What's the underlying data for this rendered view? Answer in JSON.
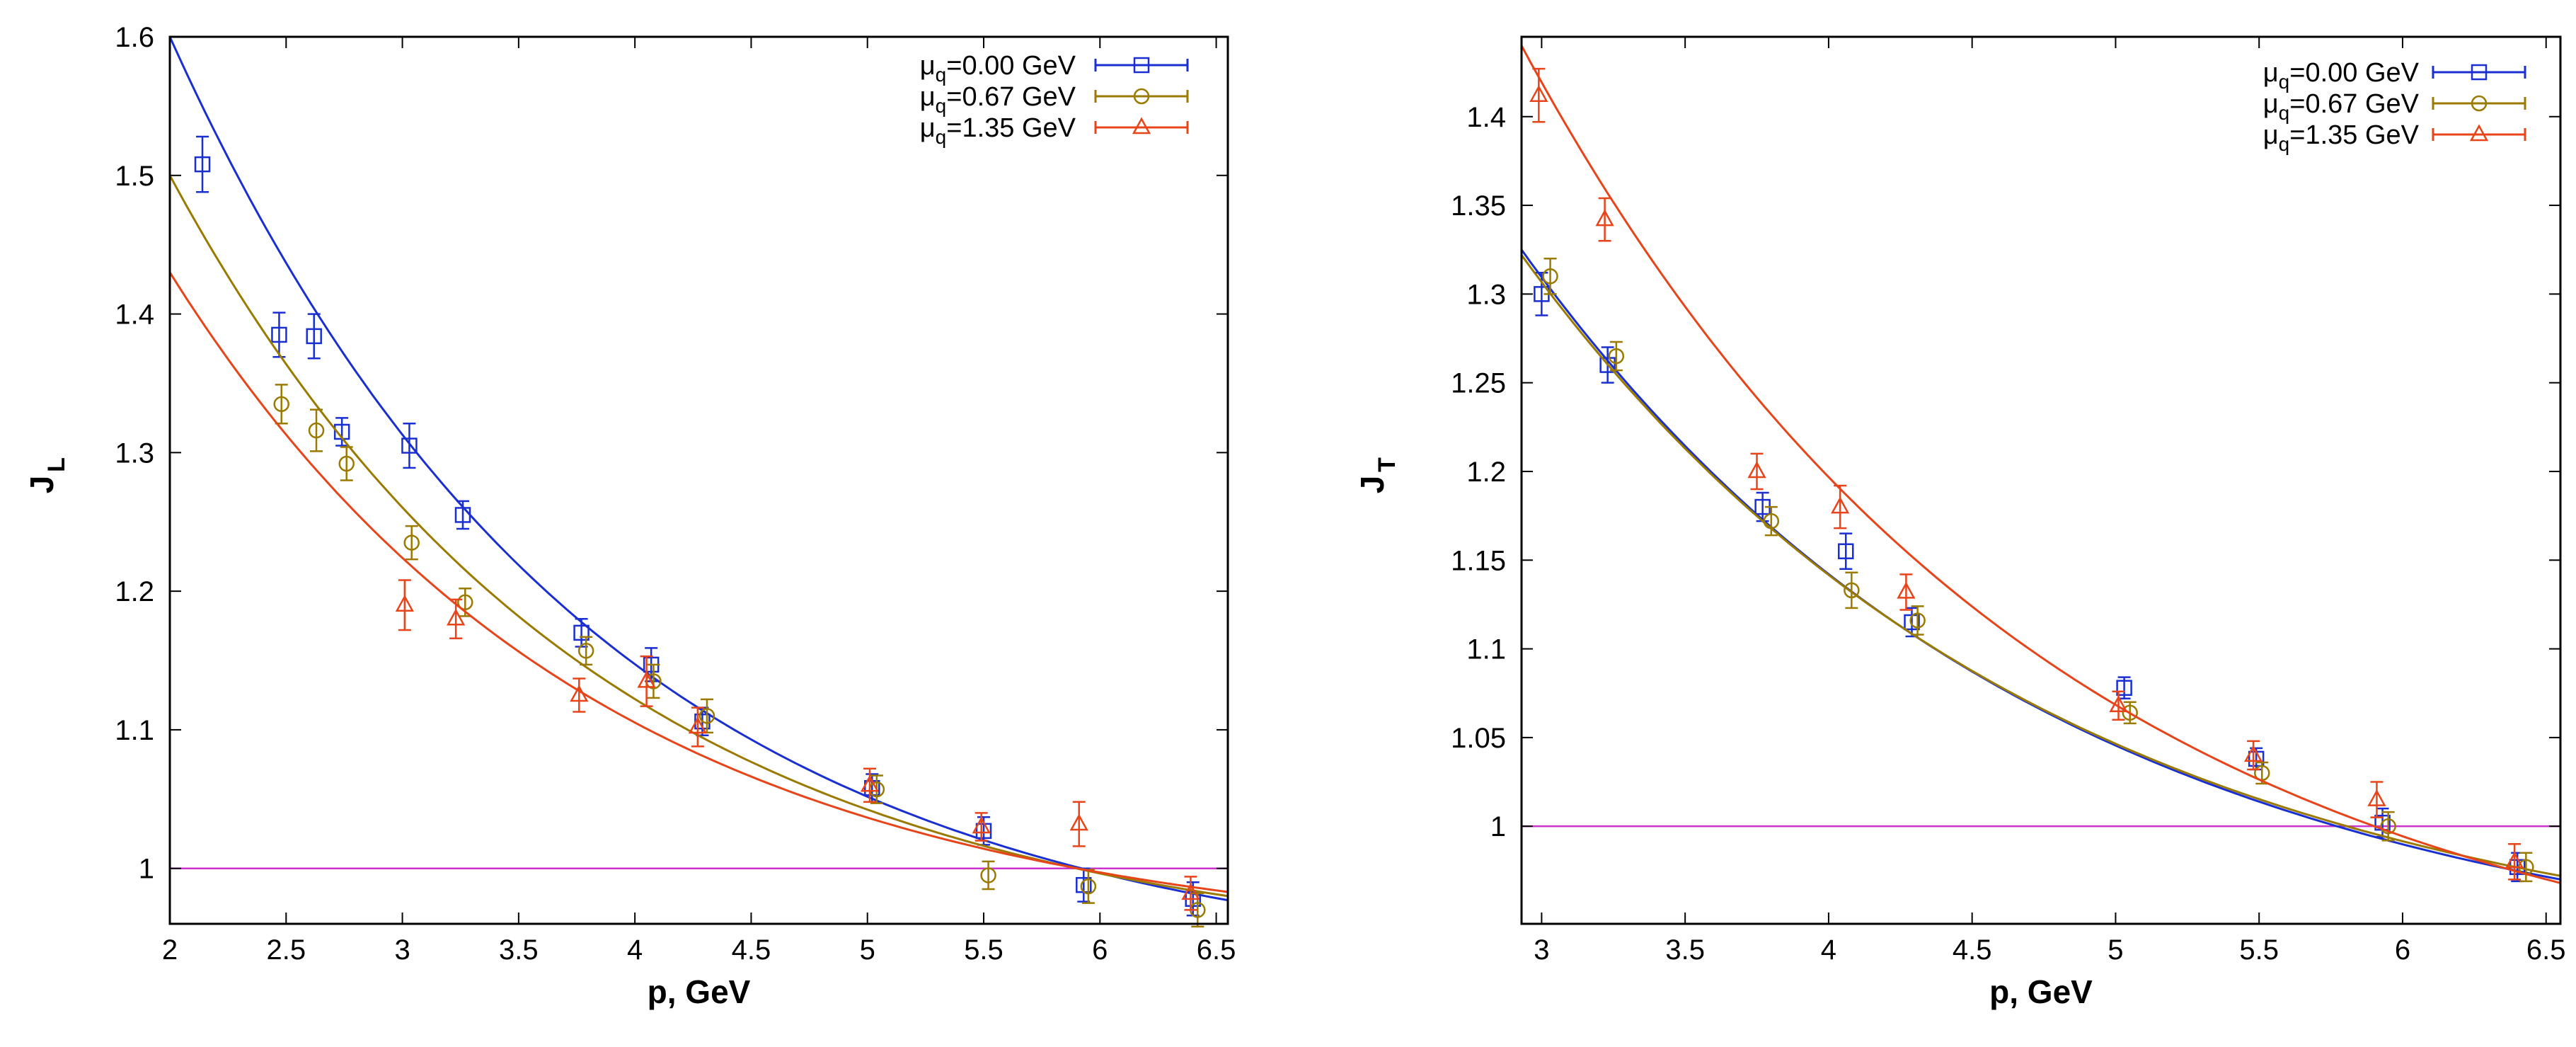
{
  "colors": {
    "s0": "#1a2fd1",
    "s1": "#9a7a00",
    "s2": "#e8441a",
    "ref": "#cc33cc"
  },
  "chart_data": [
    {
      "type": "scatter",
      "xlabel": "p, GeV",
      "ylabel_main": "J",
      "ylabel_sub": "L",
      "xlim": [
        2,
        6.55
      ],
      "ylim": [
        0.96,
        1.6
      ],
      "xticks": [
        2,
        2.5,
        3,
        3.5,
        4,
        4.5,
        5,
        5.5,
        6,
        6.5
      ],
      "xtick_labels": [
        "2",
        "2.5",
        "3",
        "3.5",
        "4",
        "4.5",
        "5",
        "5.5",
        "6",
        "6.5"
      ],
      "yticks": [
        1,
        1.1,
        1.2,
        1.3,
        1.4,
        1.5,
        1.6
      ],
      "ytick_labels": [
        "1",
        "1.1",
        "1.2",
        "1.3",
        "1.4",
        "1.5",
        "1.6"
      ],
      "reference_line": 1,
      "legend_position": "top-right",
      "series": [
        {
          "name": "μq=0.00 GeV",
          "legend_main": "μ",
          "legend_sub": "q",
          "legend_rest": "=0.00 GeV",
          "marker": "square",
          "color_key": "s0",
          "points": [
            [
              2.14,
              1.508,
              0.02
            ],
            [
              2.47,
              1.385,
              0.016
            ],
            [
              2.62,
              1.384,
              0.016
            ],
            [
              2.74,
              1.315,
              0.01
            ],
            [
              3.03,
              1.305,
              0.016
            ],
            [
              3.26,
              1.255,
              0.01
            ],
            [
              3.77,
              1.17,
              0.01
            ],
            [
              4.07,
              1.147,
              0.012
            ],
            [
              4.29,
              1.106,
              0.01
            ],
            [
              5.02,
              1.058,
              0.01
            ],
            [
              5.5,
              1.027,
              0.01
            ],
            [
              5.93,
              0.988,
              0.012
            ],
            [
              6.4,
              0.978,
              0.012
            ]
          ],
          "fit": [
            2.0,
            1.6,
            6.55,
            0.977
          ]
        },
        {
          "name": "μq=0.67 GeV",
          "legend_main": "μ",
          "legend_sub": "q",
          "legend_rest": "=0.67 GeV",
          "marker": "circle",
          "color_key": "s1",
          "points": [
            [
              2.48,
              1.335,
              0.014
            ],
            [
              2.63,
              1.316,
              0.015
            ],
            [
              2.76,
              1.292,
              0.012
            ],
            [
              3.04,
              1.235,
              0.012
            ],
            [
              3.27,
              1.192,
              0.01
            ],
            [
              3.79,
              1.157,
              0.01
            ],
            [
              4.08,
              1.135,
              0.012
            ],
            [
              4.31,
              1.11,
              0.012
            ],
            [
              5.04,
              1.057,
              0.01
            ],
            [
              5.52,
              0.995,
              0.01
            ],
            [
              5.95,
              0.987,
              0.012
            ],
            [
              6.42,
              0.97,
              0.012
            ]
          ],
          "fit": [
            2.0,
            1.5,
            6.55,
            0.98
          ]
        },
        {
          "name": "μq=1.35 GeV",
          "legend_main": "μ",
          "legend_sub": "q",
          "legend_rest": "=1.35 GeV",
          "marker": "triangle",
          "color_key": "s2",
          "points": [
            [
              3.01,
              1.19,
              0.018
            ],
            [
              3.23,
              1.18,
              0.014
            ],
            [
              3.76,
              1.125,
              0.012
            ],
            [
              4.05,
              1.135,
              0.018
            ],
            [
              4.27,
              1.102,
              0.014
            ],
            [
              5.01,
              1.06,
              0.012
            ],
            [
              5.49,
              1.03,
              0.01
            ],
            [
              5.91,
              1.032,
              0.016
            ],
            [
              6.39,
              0.982,
              0.012
            ]
          ],
          "fit": [
            2.0,
            1.43,
            6.55,
            0.983
          ]
        }
      ]
    },
    {
      "type": "scatter",
      "xlabel": "p, GeV",
      "ylabel_main": "J",
      "ylabel_sub": "T",
      "xlim": [
        2.93,
        6.55
      ],
      "ylim": [
        0.945,
        1.445
      ],
      "xticks": [
        3,
        3.5,
        4,
        4.5,
        5,
        5.5,
        6,
        6.5
      ],
      "xtick_labels": [
        "3",
        "3.5",
        "4",
        "4.5",
        "5",
        "5.5",
        "6",
        "6.5"
      ],
      "yticks": [
        1,
        1.05,
        1.1,
        1.15,
        1.2,
        1.25,
        1.3,
        1.35,
        1.4
      ],
      "ytick_labels": [
        "1",
        "1.05",
        "1.1",
        "1.15",
        "1.2",
        "1.25",
        "1.3",
        "1.35",
        "1.4"
      ],
      "reference_line": 1,
      "legend_position": "top-right",
      "series": [
        {
          "name": "μq=0.00 GeV",
          "legend_main": "μ",
          "legend_sub": "q",
          "legend_rest": "=0.00 GeV",
          "marker": "square",
          "color_key": "s0",
          "points": [
            [
              3.0,
              1.3,
              0.012
            ],
            [
              3.23,
              1.26,
              0.01
            ],
            [
              3.77,
              1.18,
              0.008
            ],
            [
              4.06,
              1.155,
              0.01
            ],
            [
              4.29,
              1.115,
              0.008
            ],
            [
              5.03,
              1.078,
              0.006
            ],
            [
              5.49,
              1.038,
              0.006
            ],
            [
              5.93,
              1.002,
              0.008
            ],
            [
              6.4,
              0.977,
              0.008
            ]
          ],
          "fit": [
            2.93,
            1.325,
            6.55,
            0.97
          ]
        },
        {
          "name": "μq=0.67 GeV",
          "legend_main": "μ",
          "legend_sub": "q",
          "legend_rest": "=0.67 GeV",
          "marker": "circle",
          "color_key": "s1",
          "points": [
            [
              3.03,
              1.31,
              0.01
            ],
            [
              3.26,
              1.265,
              0.008
            ],
            [
              3.8,
              1.172,
              0.008
            ],
            [
              4.08,
              1.133,
              0.01
            ],
            [
              4.31,
              1.116,
              0.008
            ],
            [
              5.05,
              1.064,
              0.006
            ],
            [
              5.51,
              1.03,
              0.006
            ],
            [
              5.95,
              1.0,
              0.008
            ],
            [
              6.43,
              0.977,
              0.008
            ]
          ],
          "fit": [
            2.93,
            1.322,
            6.55,
            0.972
          ]
        },
        {
          "name": "μq=1.35 GeV",
          "legend_main": "μ",
          "legend_sub": "q",
          "legend_rest": "=1.35 GeV",
          "marker": "triangle",
          "color_key": "s2",
          "points": [
            [
              2.99,
              1.412,
              0.015
            ],
            [
              3.22,
              1.342,
              0.012
            ],
            [
              3.75,
              1.2,
              0.01
            ],
            [
              4.04,
              1.18,
              0.012
            ],
            [
              4.27,
              1.132,
              0.01
            ],
            [
              5.01,
              1.068,
              0.008
            ],
            [
              5.48,
              1.04,
              0.008
            ],
            [
              5.91,
              1.015,
              0.01
            ],
            [
              6.39,
              0.98,
              0.01
            ]
          ],
          "fit": [
            2.93,
            1.44,
            6.55,
            0.968
          ]
        }
      ]
    }
  ]
}
